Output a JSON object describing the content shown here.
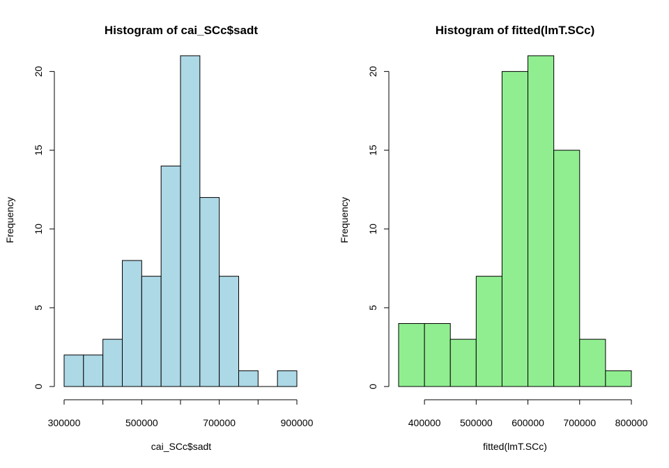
{
  "chart_data": [
    {
      "type": "bar",
      "title": "Histogram of cai_SCc$sadt",
      "xlabel": "cai_SCc$sadt",
      "ylabel": "Frequency",
      "fill_color": "#add8e6",
      "bins": [
        {
          "from": 300000,
          "to": 350000,
          "count": 2
        },
        {
          "from": 350000,
          "to": 400000,
          "count": 2
        },
        {
          "from": 400000,
          "to": 450000,
          "count": 3
        },
        {
          "from": 450000,
          "to": 500000,
          "count": 8
        },
        {
          "from": 500000,
          "to": 550000,
          "count": 7
        },
        {
          "from": 550000,
          "to": 600000,
          "count": 14
        },
        {
          "from": 600000,
          "to": 650000,
          "count": 21
        },
        {
          "from": 650000,
          "to": 700000,
          "count": 12
        },
        {
          "from": 700000,
          "to": 750000,
          "count": 7
        },
        {
          "from": 750000,
          "to": 800000,
          "count": 1
        },
        {
          "from": 800000,
          "to": 850000,
          "count": 0
        },
        {
          "from": 850000,
          "to": 900000,
          "count": 1
        }
      ],
      "xlim": [
        300000,
        900000
      ],
      "ylim": [
        0,
        21
      ],
      "x_ticks": [
        300000,
        400000,
        500000,
        600000,
        700000,
        800000,
        900000
      ],
      "x_tick_labels": [
        "300000",
        "500000",
        "700000",
        "900000"
      ],
      "y_ticks": [
        0,
        5,
        10,
        15,
        20
      ],
      "y_tick_labels": [
        "0",
        "5",
        "10",
        "15",
        "20"
      ],
      "grid": false
    },
    {
      "type": "bar",
      "title": "Histogram of fitted(lmT.SCc)",
      "xlabel": "fitted(lmT.SCc)",
      "ylabel": "Frequency",
      "fill_color": "#90ee90",
      "bins": [
        {
          "from": 350000,
          "to": 400000,
          "count": 4
        },
        {
          "from": 400000,
          "to": 450000,
          "count": 4
        },
        {
          "from": 450000,
          "to": 500000,
          "count": 3
        },
        {
          "from": 500000,
          "to": 550000,
          "count": 7
        },
        {
          "from": 550000,
          "to": 600000,
          "count": 20
        },
        {
          "from": 600000,
          "to": 650000,
          "count": 21
        },
        {
          "from": 650000,
          "to": 700000,
          "count": 15
        },
        {
          "from": 700000,
          "to": 750000,
          "count": 3
        },
        {
          "from": 750000,
          "to": 800000,
          "count": 1
        }
      ],
      "xlim": [
        350000,
        800000
      ],
      "ylim": [
        0,
        21
      ],
      "x_ticks": [
        400000,
        500000,
        600000,
        700000,
        800000
      ],
      "x_tick_labels": [
        "400000",
        "500000",
        "600000",
        "700000",
        "800000"
      ],
      "y_ticks": [
        0,
        5,
        10,
        15,
        20
      ],
      "y_tick_labels": [
        "0",
        "5",
        "10",
        "15",
        "20"
      ],
      "grid": false
    }
  ]
}
